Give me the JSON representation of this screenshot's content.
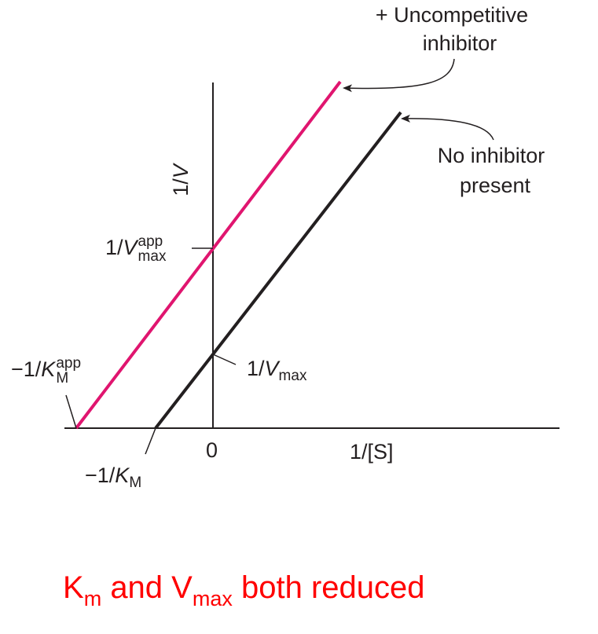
{
  "labels": {
    "uncompetitive": [
      "+ Uncompetitive",
      "inhibitor"
    ],
    "no_inhibitor": [
      "No inhibitor",
      "present"
    ],
    "y_axis": {
      "prefix": "1/",
      "symbol": "V"
    },
    "x_axis": "1/[S]",
    "origin": "0",
    "vmax_app": {
      "prefix": "1/",
      "symbol": "V",
      "sup": "app",
      "sub": "max"
    },
    "km_app": {
      "prefix": "−1/",
      "symbol": "K",
      "sup": "app",
      "sub": "M"
    },
    "vmax": {
      "prefix": "1/",
      "symbol": "V",
      "sub": "max"
    },
    "km": {
      "prefix": "−1/",
      "symbol": "K",
      "sub": "M"
    }
  },
  "caption": {
    "p1": "K",
    "s1": "m",
    "p2": "and V",
    "s2": "max",
    "p3": "both reduced"
  }
}
